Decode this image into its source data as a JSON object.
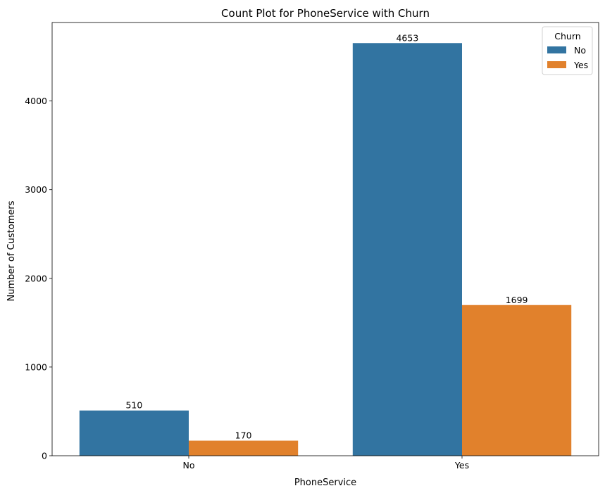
{
  "chart_data": {
    "type": "bar",
    "title": "Count Plot for PhoneService with Churn",
    "xlabel": "PhoneService",
    "ylabel": "Number of Customers",
    "categories": [
      "No",
      "Yes"
    ],
    "series": [
      {
        "name": "No",
        "values": [
          510,
          4653
        ],
        "color": "#3274a1"
      },
      {
        "name": "Yes",
        "values": [
          170,
          1699
        ],
        "color": "#e1812c"
      }
    ],
    "data_labels": [
      [
        "510",
        "4653"
      ],
      [
        "170",
        "1699"
      ]
    ],
    "ylim": [
      0,
      4885
    ],
    "yticks": [
      0,
      1000,
      2000,
      3000,
      4000
    ],
    "ytick_labels": [
      "0",
      "1000",
      "2000",
      "3000",
      "4000"
    ],
    "grid": false,
    "legend": {
      "title": "Churn",
      "position": "top-right"
    }
  }
}
